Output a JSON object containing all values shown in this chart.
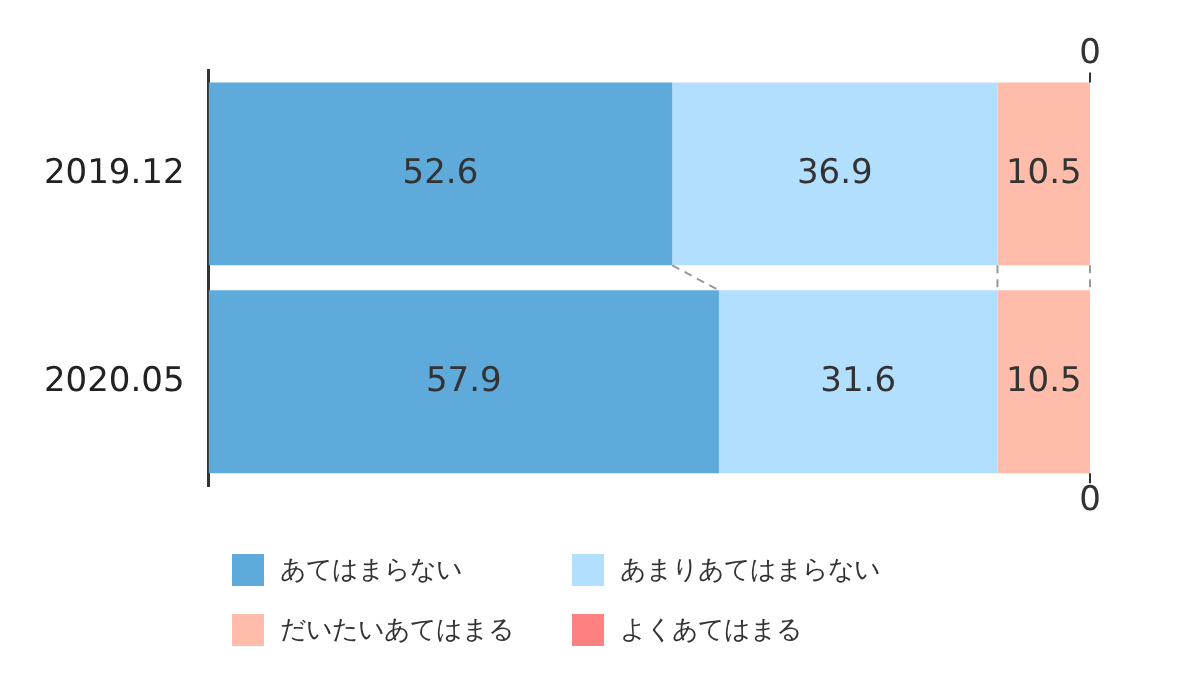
{
  "chart_data": {
    "type": "bar",
    "orientation": "horizontal",
    "stacked": true,
    "legend": "bottom",
    "categories": [
      "2019.12",
      "2020.05"
    ],
    "xlim": [
      0,
      100
    ],
    "series": [
      {
        "name": "あてはまらない",
        "color": "#5eaadb",
        "values": [
          52.6,
          57.9
        ],
        "value_labels": [
          "52.6",
          "57.9"
        ]
      },
      {
        "name": "あまりあてはまらない",
        "color": "#b3dfff",
        "values": [
          36.9,
          31.6
        ],
        "value_labels": [
          "36.9",
          "31.6"
        ]
      },
      {
        "name": "だいたいあてはまる",
        "color": "#ffbcaa",
        "values": [
          10.5,
          10.5
        ],
        "value_labels": [
          "10.5",
          "10.5"
        ]
      },
      {
        "name": "よくあてはまる",
        "color": "#ff8080",
        "values": [
          0,
          0
        ],
        "value_labels": [
          null,
          null
        ]
      }
    ],
    "annotations": [
      {
        "text": "0",
        "x": 100,
        "y": "2019.12"
      },
      {
        "text": "0",
        "x": 100,
        "y": "2020.05"
      }
    ]
  }
}
